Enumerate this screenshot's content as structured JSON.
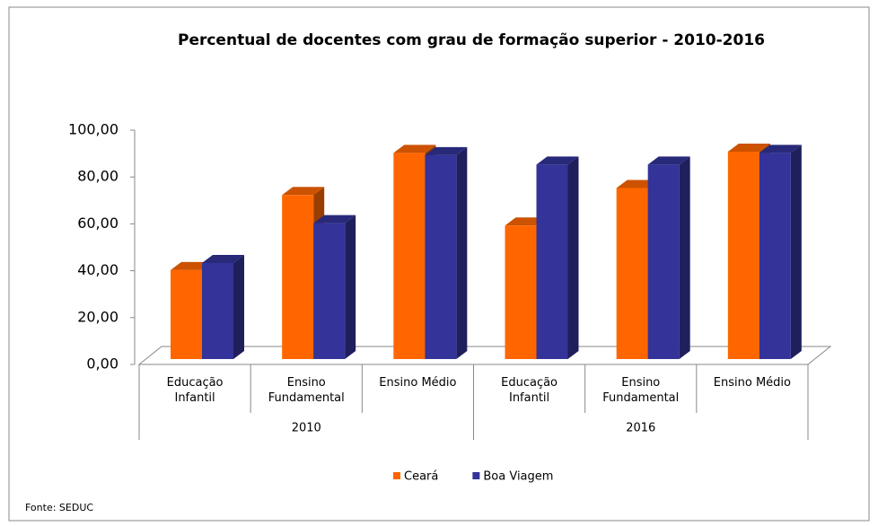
{
  "chart_data": {
    "type": "bar3d",
    "title": "Percentual de docentes com grau de formação superior  - 2010-2016",
    "categories": [
      "Educação Infantil",
      "Ensino Fundamental",
      "Ensino Médio",
      "Educação Infantil",
      "Ensino Fundamental",
      "Ensino Médio"
    ],
    "groups": [
      "2010",
      "2016"
    ],
    "series": [
      {
        "name": "Ceará",
        "color": "#ff6600",
        "values": [
          38,
          70,
          88,
          57,
          73,
          88.5
        ]
      },
      {
        "name": "Boa Viagem",
        "color": "#333399",
        "values": [
          41,
          58,
          87,
          83,
          83,
          88
        ]
      }
    ],
    "ylim": [
      0,
      100
    ],
    "yticks": [
      {
        "value": 0,
        "label": "0,00"
      },
      {
        "value": 20,
        "label": "20,00"
      },
      {
        "value": 40,
        "label": "40,00"
      },
      {
        "value": 60,
        "label": "60,00"
      },
      {
        "value": 80,
        "label": "80,00"
      },
      {
        "value": 100,
        "label": "100,00"
      }
    ],
    "legend": "bottom",
    "source": "Fonte: SEDUC"
  }
}
